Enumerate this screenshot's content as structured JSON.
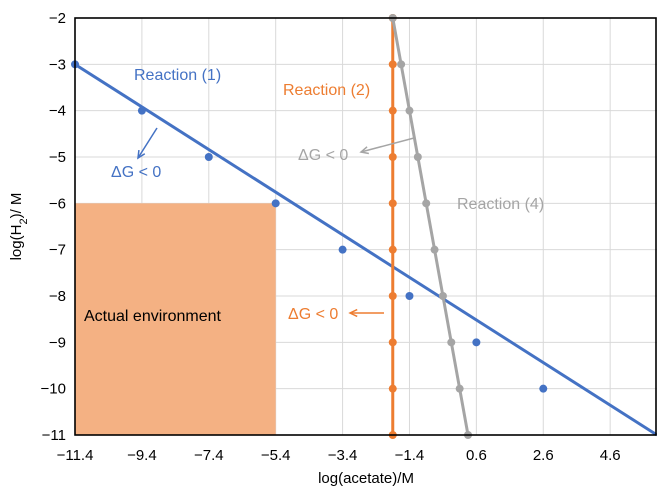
{
  "chart_data": {
    "type": "line",
    "xlabel": "log(acetate)/M",
    "ylabel_main": "log(H",
    "ylabel_sub": "2",
    "ylabel_tail": ")/ M",
    "xlim": [
      -11.4,
      6.0
    ],
    "ylim": [
      -11,
      -2
    ],
    "x_ticks": [
      -11.4,
      -9.4,
      -7.4,
      -5.4,
      -3.4,
      -1.4,
      0.6,
      2.6,
      4.6
    ],
    "x_tick_labels": [
      "−11.4",
      "−9.4",
      "−7.4",
      "−5.4",
      "−3.4",
      "−1.4",
      "0.6",
      "2.6",
      "4.6"
    ],
    "y_ticks": [
      -2,
      -3,
      -4,
      -5,
      -6,
      -7,
      -8,
      -9,
      -10,
      -11
    ],
    "y_tick_labels": [
      "−2",
      "−3",
      "−4",
      "−5",
      "−6",
      "−7",
      "−8",
      "−9",
      "−10",
      "−11"
    ],
    "grid": true,
    "series": [
      {
        "name": "Reaction (1)",
        "color": "#4472c4",
        "line": [
          [
            -11.4,
            -3.0
          ],
          [
            6.0,
            -11.0
          ]
        ],
        "markers": [
          [
            -11.4,
            -3
          ],
          [
            -9.4,
            -4
          ],
          [
            -7.4,
            -5
          ],
          [
            -5.4,
            -6
          ],
          [
            -3.4,
            -7
          ],
          [
            -1.4,
            -8
          ],
          [
            0.6,
            -9
          ],
          [
            2.6,
            -10
          ]
        ],
        "note": "ΔG < 0"
      },
      {
        "name": "Reaction (2)",
        "color": "#ed7d31",
        "line": [
          [
            -1.9,
            -2
          ],
          [
            -1.9,
            -11
          ]
        ],
        "markers": [
          [
            -1.9,
            -2
          ],
          [
            -1.9,
            -3
          ],
          [
            -1.9,
            -4
          ],
          [
            -1.9,
            -5
          ],
          [
            -1.9,
            -6
          ],
          [
            -1.9,
            -7
          ],
          [
            -1.9,
            -8
          ],
          [
            -1.9,
            -9
          ],
          [
            -1.9,
            -10
          ],
          [
            -1.9,
            -11
          ]
        ],
        "note": "ΔG < 0"
      },
      {
        "name": "Reaction (4)",
        "color": "#a5a5a5",
        "line": [
          [
            -1.9,
            -2
          ],
          [
            -1.65,
            -3
          ],
          [
            -1.4,
            -4
          ],
          [
            -1.15,
            -5
          ],
          [
            -0.9,
            -6
          ],
          [
            -0.65,
            -7
          ],
          [
            -0.4,
            -8
          ],
          [
            -0.15,
            -9
          ],
          [
            0.1,
            -10
          ],
          [
            0.35,
            -11
          ]
        ],
        "markers": [
          [
            -1.9,
            -2
          ],
          [
            -1.65,
            -3
          ],
          [
            -1.4,
            -4
          ],
          [
            -1.15,
            -5
          ],
          [
            -0.9,
            -6
          ],
          [
            -0.65,
            -7
          ],
          [
            -0.4,
            -8
          ],
          [
            -0.15,
            -9
          ],
          [
            0.1,
            -10
          ],
          [
            0.35,
            -11
          ]
        ],
        "note": "ΔG < 0"
      }
    ],
    "region": {
      "label": "Actual environment",
      "color": "#f4b183",
      "x": [
        -11.4,
        -5.4
      ],
      "y": [
        -11,
        -6
      ]
    }
  }
}
